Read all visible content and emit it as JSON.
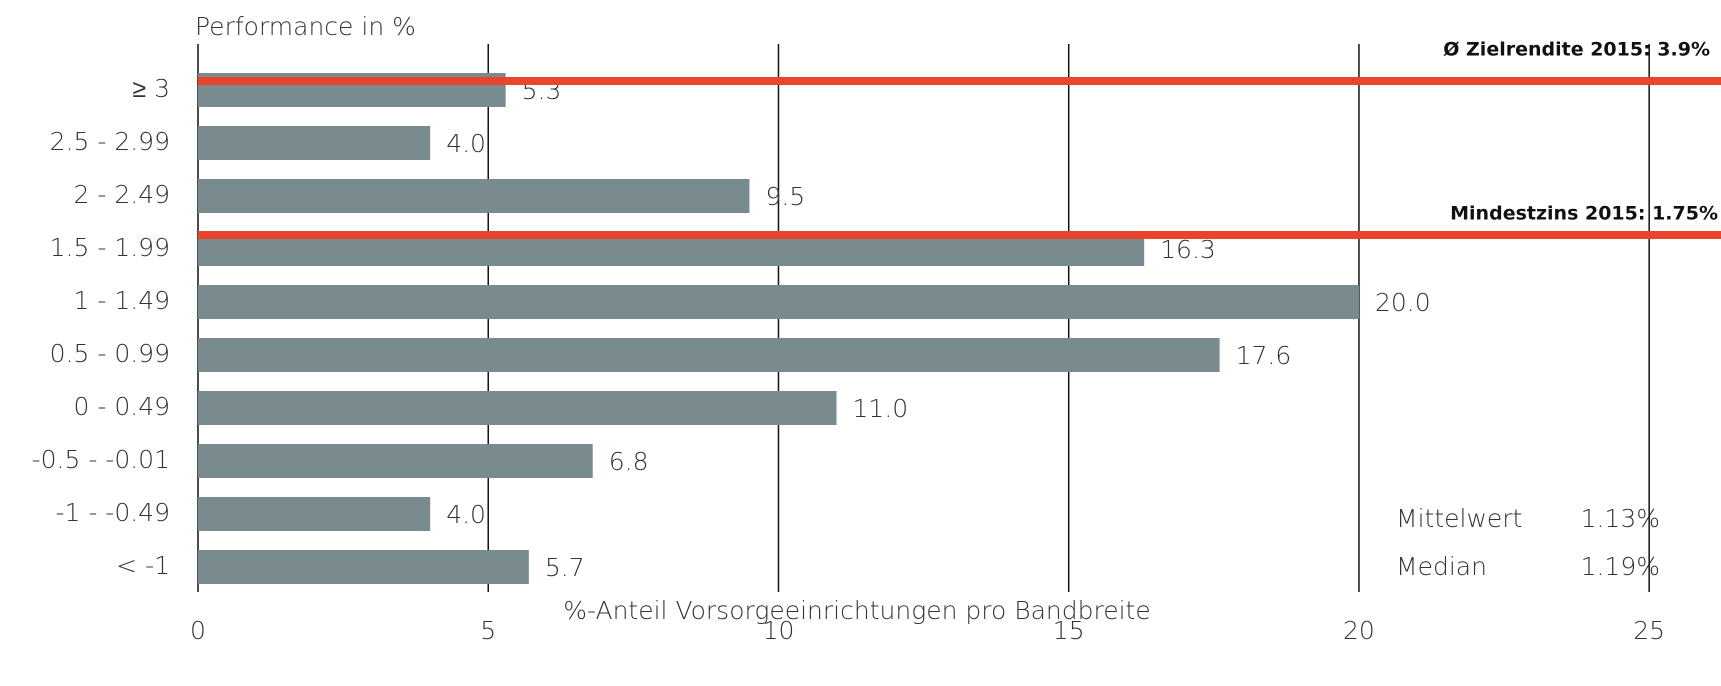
{
  "chart_data": {
    "type": "bar",
    "orientation": "horizontal",
    "ylabel": "Performance in %",
    "xlabel": "%-Anteil Vorsorgeeinrichtungen pro Bandbreite",
    "categories": [
      "≥ 3",
      "2.5 - 2.99",
      "2 - 2.49",
      "1.5 - 1.99",
      "1 - 1.49",
      "0.5 - 0.99",
      "0 - 0.49",
      "-0.5 - -0.01",
      "-1 - -0.49",
      "< -1"
    ],
    "values": [
      5.3,
      4.0,
      9.5,
      16.3,
      20.0,
      17.6,
      11.0,
      6.8,
      4.0,
      5.7
    ],
    "value_labels": [
      "5.3",
      "4.0",
      "9.5",
      "16.3",
      "20.0",
      "17.6",
      "11.0",
      "6.8",
      "4.0",
      "5.7"
    ],
    "color": "#7a8b8f",
    "xlim": [
      0,
      25.6
    ],
    "xticks": [
      0,
      5,
      10,
      15,
      20,
      25
    ],
    "grid": true,
    "annotations": {
      "target": "Ø Zielrendite 2015: 3.9%",
      "minimum": "Mindestzins 2015: 1.75%",
      "mean_label": "Mittelwert",
      "mean_value": "1.13%",
      "median_label": "Median",
      "median_value": "1.19%"
    },
    "reference_line_color": "#e8452c"
  }
}
